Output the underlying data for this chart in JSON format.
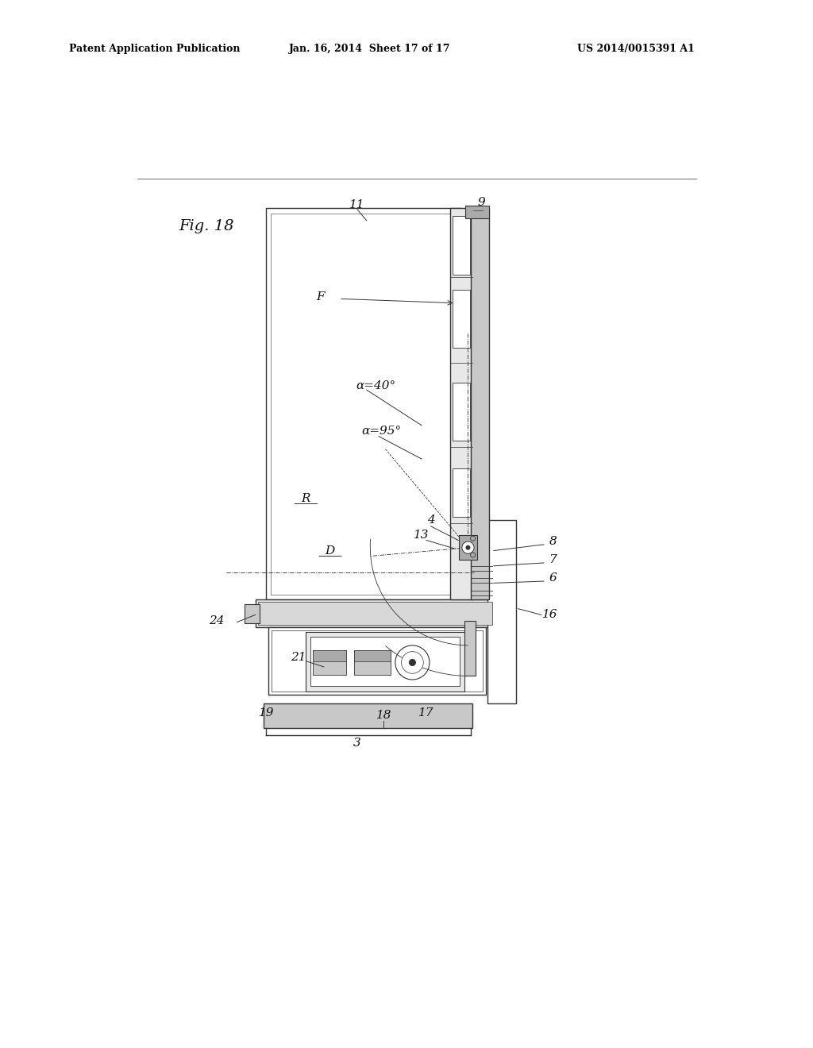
{
  "bg_color": "#ffffff",
  "line_color": "#333333",
  "title_left": "Patent Application Publication",
  "title_center": "Jan. 16, 2014  Sheet 17 of 17",
  "title_right": "US 2014/0015391 A1",
  "fig_label": "Fig. 18",
  "lw_main": 1.0,
  "lw_thin": 0.6,
  "lw_thick": 1.8,
  "gray_light": "#e8e8e8",
  "gray_med": "#c8c8c8",
  "gray_dark": "#aaaaaa"
}
